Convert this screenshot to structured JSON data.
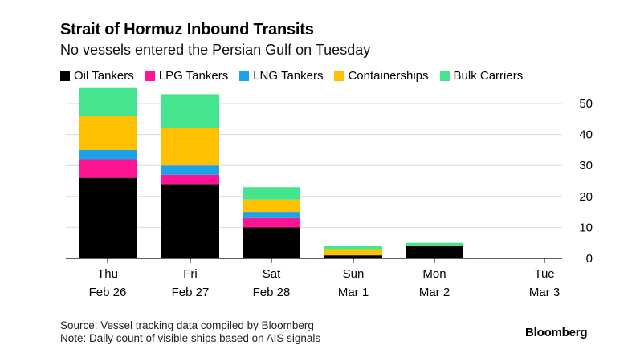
{
  "header": {
    "title": "Strait of Hormuz Inbound Transits",
    "subtitle": "No vessels entered the Persian Gulf on Tuesday"
  },
  "footer": {
    "source": "Source: Vessel tracking data compiled by Bloomberg",
    "note": "Note: Daily count of visible ships based on AIS signals",
    "brand": "Bloomberg"
  },
  "chart_data": {
    "type": "bar",
    "stacked": true,
    "title": "Strait of Hormuz Inbound Transits",
    "subtitle": "No vessels entered the Persian Gulf on Tuesday",
    "xlabel": "",
    "ylabel": "",
    "ylim": [
      0,
      55
    ],
    "yticks": [
      0,
      10,
      20,
      30,
      40,
      50
    ],
    "grid": true,
    "legend_position": "top",
    "categories": [
      {
        "day": "Thu",
        "date": "Feb 26"
      },
      {
        "day": "Fri",
        "date": "Feb 27"
      },
      {
        "day": "Sat",
        "date": "Feb 28"
      },
      {
        "day": "Sun",
        "date": "Mar 1"
      },
      {
        "day": "Mon",
        "date": "Mar 2"
      },
      {
        "day": "Tue",
        "date": "Mar 3"
      }
    ],
    "series": [
      {
        "name": "Oil Tankers",
        "color": "#000000",
        "values": [
          26,
          24,
          10,
          1,
          4,
          0
        ]
      },
      {
        "name": "LPG Tankers",
        "color": "#ff1493",
        "values": [
          6,
          3,
          3,
          0,
          0,
          0
        ]
      },
      {
        "name": "LNG Tankers",
        "color": "#1aa3e8",
        "values": [
          3,
          3,
          2,
          0,
          0,
          0
        ]
      },
      {
        "name": "Containerships",
        "color": "#ffc000",
        "values": [
          11,
          12,
          4,
          2,
          0,
          0
        ]
      },
      {
        "name": "Bulk Carriers",
        "color": "#45e48e",
        "values": [
          9,
          11,
          4,
          1,
          1,
          0
        ]
      }
    ]
  }
}
